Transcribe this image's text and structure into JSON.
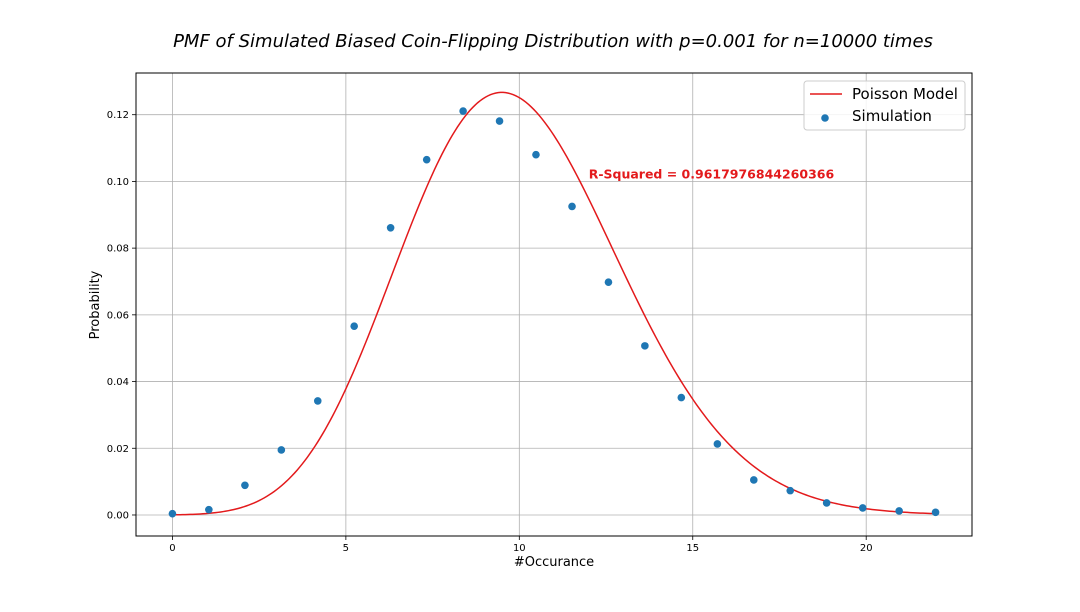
{
  "chart_data": {
    "type": "scatter",
    "title": "PMF of Simulated Biased Coin-Flipping Distribution with p=0.001 for n=10000 times",
    "xlabel": "#Occurance",
    "ylabel": "Probability",
    "xlim": [
      -1.05,
      23.05
    ],
    "ylim": [
      -0.0063,
      0.1325
    ],
    "xticks": [
      0,
      5,
      10,
      15,
      20
    ],
    "yticks": [
      0.0,
      0.02,
      0.04,
      0.06,
      0.08,
      0.1,
      0.12
    ],
    "ytick_labels": [
      "0.00",
      "0.02",
      "0.04",
      "0.06",
      "0.08",
      "0.10",
      "0.12"
    ],
    "grid": true,
    "legend_position": "top-right",
    "series": [
      {
        "name": "Poisson Model",
        "kind": "line",
        "color": "#e31a1c",
        "mean": 10,
        "x_range": [
          0,
          22
        ]
      },
      {
        "name": "Simulation",
        "kind": "scatter",
        "color": "#1f77b4",
        "x": [
          0,
          1.05,
          2.09,
          3.14,
          4.19,
          5.24,
          6.29,
          7.33,
          8.38,
          9.43,
          10.48,
          11.52,
          12.57,
          13.62,
          14.67,
          15.71,
          16.76,
          17.81,
          18.86,
          19.9,
          20.95,
          22
        ],
        "y": [
          0.0004,
          0.0016,
          0.0089,
          0.0195,
          0.0342,
          0.0566,
          0.0861,
          0.1065,
          0.1211,
          0.1181,
          0.108,
          0.0925,
          0.0698,
          0.0507,
          0.0352,
          0.0213,
          0.0105,
          0.0073,
          0.0036,
          0.0021,
          0.0012,
          0.0008
        ]
      }
    ],
    "annotation": {
      "text": "R-Squared = 0.9617976844260366",
      "color": "#e31a1c",
      "x": 12,
      "y": 0.1008
    }
  }
}
